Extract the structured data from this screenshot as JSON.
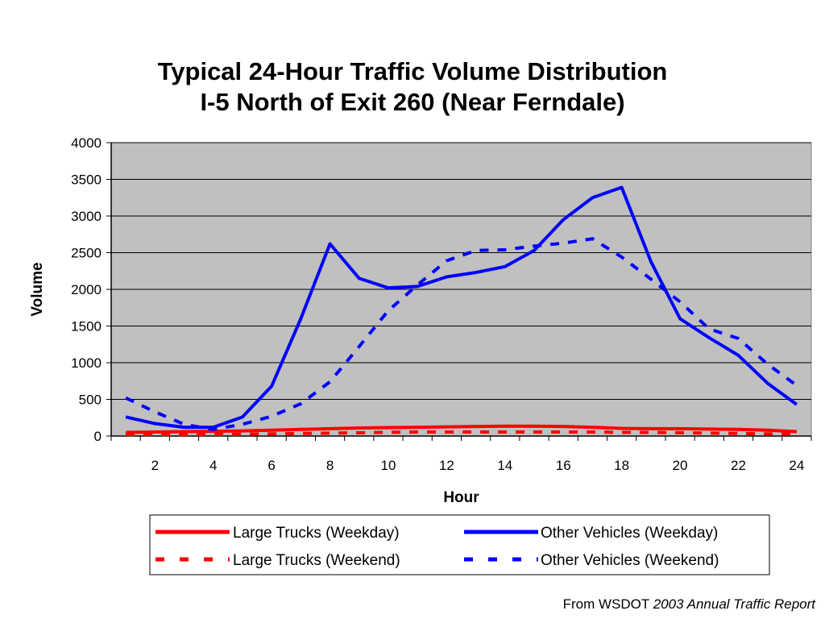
{
  "chart_data": {
    "type": "line",
    "title": "Typical 24-Hour Traffic Volume Distribution",
    "subtitle": "I-5 North of Exit 260 (Near Ferndale)",
    "xlabel": "Hour",
    "ylabel": "Volume",
    "x": [
      1,
      2,
      3,
      4,
      5,
      6,
      7,
      8,
      9,
      10,
      11,
      12,
      13,
      14,
      15,
      16,
      17,
      18,
      19,
      20,
      21,
      22,
      23,
      24
    ],
    "x_ticks": [
      2,
      4,
      6,
      8,
      10,
      12,
      14,
      16,
      18,
      20,
      22,
      24
    ],
    "y_ticks": [
      0,
      500,
      1000,
      1500,
      2000,
      2500,
      3000,
      3500,
      4000
    ],
    "xlim": [
      0.5,
      24.5
    ],
    "ylim": [
      0,
      4000
    ],
    "grid": "horizontal",
    "plot_background": "#c0c0c0",
    "legend_position": "bottom",
    "series": [
      {
        "name": "Large Trucks (Weekday)",
        "color": "#ff0000",
        "style": "solid",
        "values": [
          50,
          55,
          60,
          65,
          70,
          80,
          90,
          100,
          110,
          115,
          120,
          125,
          130,
          135,
          135,
          130,
          120,
          105,
          100,
          100,
          95,
          90,
          80,
          60
        ]
      },
      {
        "name": "Other Vehicles (Weekday)",
        "color": "#0000ff",
        "style": "solid",
        "values": [
          260,
          170,
          120,
          120,
          260,
          680,
          1600,
          2620,
          2150,
          2020,
          2040,
          2170,
          2230,
          2310,
          2530,
          2950,
          3250,
          3390,
          2380,
          1600,
          1340,
          1100,
          720,
          430
        ]
      },
      {
        "name": "Large Trucks (Weekend)",
        "color": "#ff0000",
        "style": "dashed",
        "values": [
          20,
          20,
          20,
          20,
          25,
          30,
          35,
          40,
          45,
          50,
          55,
          55,
          55,
          55,
          55,
          55,
          55,
          50,
          50,
          45,
          40,
          35,
          30,
          25
        ]
      },
      {
        "name": "Other Vehicles (Weekend)",
        "color": "#0000ff",
        "style": "dashed",
        "values": [
          520,
          330,
          160,
          90,
          160,
          270,
          440,
          740,
          1220,
          1710,
          2060,
          2390,
          2530,
          2540,
          2590,
          2630,
          2690,
          2440,
          2140,
          1830,
          1460,
          1330,
          980,
          690
        ]
      }
    ]
  },
  "source": {
    "prefix": "From WSDOT ",
    "italic": "2003 Annual Traffic Report"
  }
}
